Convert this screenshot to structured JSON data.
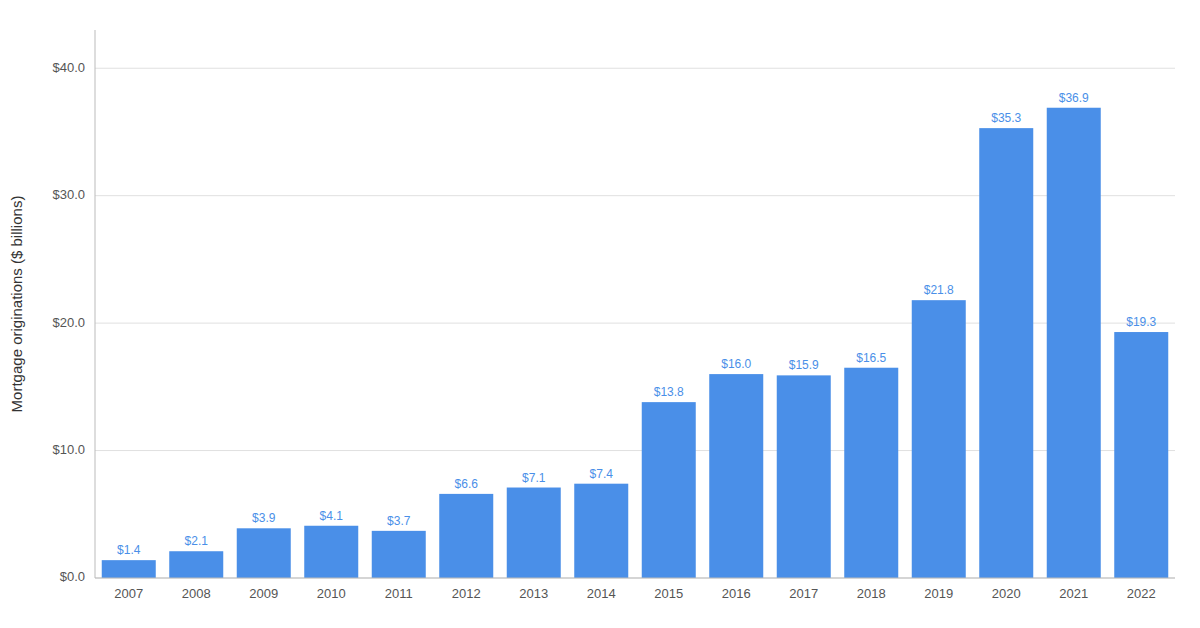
{
  "chart_data": {
    "type": "bar",
    "categories": [
      "2007",
      "2008",
      "2009",
      "2010",
      "2011",
      "2012",
      "2013",
      "2014",
      "2015",
      "2016",
      "2017",
      "2018",
      "2019",
      "2020",
      "2021",
      "2022"
    ],
    "values": [
      1.4,
      2.1,
      3.9,
      4.1,
      3.7,
      6.6,
      7.1,
      7.4,
      13.8,
      16.0,
      15.9,
      16.5,
      21.8,
      35.3,
      36.9,
      19.3
    ],
    "value_labels": [
      "$1.4",
      "$2.1",
      "$3.9",
      "$4.1",
      "$3.7",
      "$6.6",
      "$7.1",
      "$7.4",
      "$13.8",
      "$16.0",
      "$15.9",
      "$16.5",
      "$21.8",
      "$35.3",
      "$36.9",
      "$19.3"
    ],
    "color": "#4a8fe8",
    "y_label": "Mortgage originations ($ billions)",
    "ylim": [
      0,
      43
    ],
    "yticks": [
      {
        "value": 0,
        "label": "$0.0"
      },
      {
        "value": 10,
        "label": "$10.0"
      },
      {
        "value": 20,
        "label": "$20.0"
      },
      {
        "value": 30,
        "label": "$30.0"
      },
      {
        "value": 40,
        "label": "$40.0"
      }
    ],
    "grid": true,
    "data_labels": true
  }
}
